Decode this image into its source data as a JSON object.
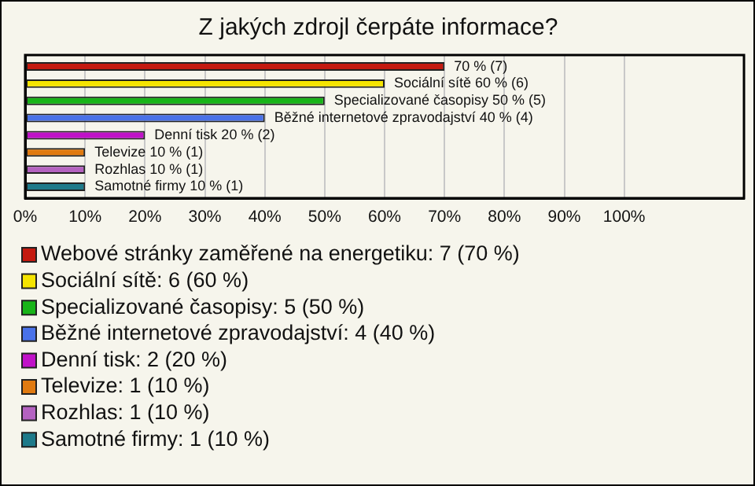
{
  "chart_data": {
    "type": "bar",
    "orientation": "horizontal",
    "title": "Z jakých zdrojl čerpáte informace?",
    "categories": [
      null
    ],
    "series": [
      {
        "name": "Webové stránky zaměřené na energetiku: 7 (70 %)",
        "color": "#c41a10",
        "values": [
          70
        ],
        "value_labels": [
          "70 % (7)"
        ]
      },
      {
        "name": "Sociální sítě: 6 (60 %)",
        "color": "#f5e400",
        "values": [
          60
        ],
        "value_labels": [
          "Sociální sítě 60 % (6)"
        ]
      },
      {
        "name": "Specializované časopisy: 5 (50 %)",
        "color": "#18b418",
        "values": [
          50
        ],
        "value_labels": [
          "Specializované časopisy 50 % (5)"
        ]
      },
      {
        "name": "Běžné internetové zpravodajství: 4 (40 %)",
        "color": "#4a72e8",
        "values": [
          40
        ],
        "value_labels": [
          "Běžné internetové zpravodajství 40 % (4)"
        ]
      },
      {
        "name": "Denní tisk: 2 (20 %)",
        "color": "#c012c8",
        "values": [
          20
        ],
        "value_labels": [
          "Denní tisk 20 % (2)"
        ]
      },
      {
        "name": "Televize: 1 (10 %)",
        "color": "#e07a10",
        "values": [
          10
        ],
        "value_labels": [
          "Televize 10 % (1)"
        ]
      },
      {
        "name": "Rozhlas: 1 (10 %)",
        "color": "#b462c0",
        "values": [
          10
        ],
        "value_labels": [
          "Rozhlas 10 % (1)"
        ]
      },
      {
        "name": "Samotné firmy: 1 (10 %)",
        "color": "#1e7a8a",
        "values": [
          10
        ],
        "value_labels": [
          "Samotné firmy 10 % (1)"
        ]
      }
    ],
    "xlim": [
      0,
      120
    ],
    "xticks": [
      {
        "value": 0,
        "label": "0%"
      },
      {
        "value": 10,
        "label": "10%"
      },
      {
        "value": 20,
        "label": "20%"
      },
      {
        "value": 30,
        "label": "30%"
      },
      {
        "value": 40,
        "label": "40%"
      },
      {
        "value": 50,
        "label": "50%"
      },
      {
        "value": 60,
        "label": "60%"
      },
      {
        "value": 70,
        "label": "70%"
      },
      {
        "value": 80,
        "label": "80%"
      },
      {
        "value": 90,
        "label": "90%"
      },
      {
        "value": 100,
        "label": "100%"
      }
    ],
    "grid": "x",
    "legend": "bottom",
    "tick_labels": "x"
  }
}
